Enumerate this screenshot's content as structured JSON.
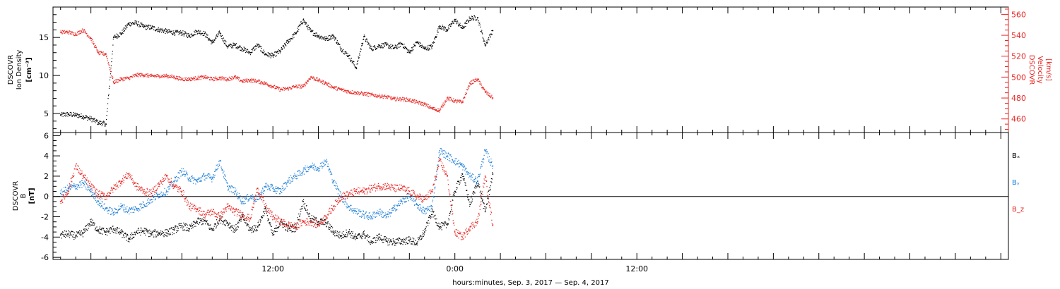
{
  "chart_data": [
    {
      "type": "scatter",
      "panel": "density_velocity",
      "ylabel": "DSCOVR Ion Density [cm^-3]",
      "ylabel_lines": [
        "DSCOVR",
        "Ion Density",
        "[cm⁻³]"
      ],
      "ylim": [
        2.5,
        19
      ],
      "yticks": [
        5,
        10,
        15
      ],
      "ylabel_right": "DSCOVR Velocity [km/s]",
      "ylabel_right_lines": [
        "DSCOVR",
        "Velocity",
        "[km/s]"
      ],
      "ylim_right": [
        447,
        567
      ],
      "yticks_right": [
        460,
        480,
        500,
        520,
        540,
        560
      ],
      "series": [
        {
          "name": "Ion Density",
          "color": "#000000",
          "axis": "left",
          "x": [
            -2.0,
            -1.5,
            -1.0,
            -0.5,
            0.0,
            0.5,
            1.0,
            1.5,
            2.0,
            2.5,
            3.0,
            3.5,
            4.0,
            4.5,
            5.0,
            5.5,
            6.0,
            6.5,
            7.0,
            7.5,
            8.0,
            8.5,
            9.0,
            9.5,
            10.0,
            10.5,
            11.0,
            11.5,
            12.0,
            12.5,
            13.0,
            13.5,
            14.0,
            14.5,
            15.0,
            15.5,
            16.0,
            16.5,
            17.0,
            17.5,
            18.0,
            18.5,
            19.0,
            19.5,
            20.0,
            20.5,
            21.0,
            21.5,
            22.0,
            22.5,
            23.0,
            23.5,
            24.0,
            24.5,
            25.0,
            25.5,
            26.0,
            26.5
          ],
          "y": [
            4.8,
            4.9,
            4.8,
            4.6,
            4.3,
            3.8,
            3.6,
            15.0,
            15.5,
            16.8,
            16.9,
            16.4,
            16.3,
            16.0,
            15.8,
            15.6,
            15.6,
            15.2,
            15.8,
            15.5,
            14.3,
            15.6,
            13.8,
            14.0,
            13.5,
            13.0,
            14.0,
            12.8,
            12.6,
            13.2,
            14.5,
            15.5,
            17.3,
            15.8,
            15.2,
            14.8,
            15.2,
            13.5,
            12.6,
            11.0,
            15.1,
            13.5,
            13.9,
            14.0,
            13.6,
            14.2,
            13.0,
            14.4,
            13.5,
            13.8,
            16.5,
            16.0,
            17.3,
            16.2,
            17.5,
            17.6,
            14.0,
            15.9
          ]
        },
        {
          "name": "Velocity",
          "color": "#e8231f",
          "axis": "right",
          "x": [
            -2.0,
            -1.5,
            -1.0,
            -0.5,
            0.0,
            0.5,
            1.0,
            1.5,
            2.0,
            2.5,
            3.0,
            3.5,
            4.0,
            4.5,
            5.0,
            5.5,
            6.0,
            6.5,
            7.0,
            7.5,
            8.0,
            8.5,
            9.0,
            9.5,
            10.0,
            10.5,
            11.0,
            11.5,
            12.0,
            12.5,
            13.0,
            13.5,
            14.0,
            14.5,
            15.0,
            15.5,
            16.0,
            16.5,
            17.0,
            17.5,
            18.0,
            18.5,
            19.0,
            19.5,
            20.0,
            20.5,
            21.0,
            21.5,
            22.0,
            22.5,
            23.0,
            23.5,
            24.0,
            24.5,
            25.0,
            25.5,
            26.0,
            26.5
          ],
          "y": [
            543,
            543,
            541,
            545,
            537,
            523,
            522,
            495,
            498,
            499,
            502,
            502,
            501,
            501,
            501,
            500,
            498,
            498,
            499,
            500,
            498,
            499,
            498,
            500,
            496,
            497,
            496,
            494,
            491,
            488,
            489,
            491,
            491,
            500,
            497,
            494,
            490,
            488,
            486,
            485,
            484,
            483,
            482,
            481,
            479,
            479,
            478,
            476,
            474,
            470,
            468,
            480,
            477,
            476,
            494,
            498,
            486,
            480
          ]
        }
      ],
      "grid": false
    },
    {
      "type": "scatter",
      "panel": "magnetic_field",
      "ylabel": "DSCOVR B [nT]",
      "ylabel_lines": [
        "DSCOVR",
        "B",
        "[nT]"
      ],
      "ylim": [
        -6.2,
        6.3
      ],
      "yticks": [
        -6,
        -4,
        -2,
        0,
        2,
        4,
        6
      ],
      "zero_line": true,
      "legend_placement": "right",
      "series": [
        {
          "name": "Bx",
          "legend_label": "Bₓ",
          "color": "#000000",
          "x": [
            -2.0,
            -1.5,
            -1.0,
            -0.5,
            0.0,
            0.5,
            1.0,
            1.5,
            2.0,
            2.5,
            3.0,
            3.5,
            4.0,
            4.5,
            5.0,
            5.5,
            6.0,
            6.5,
            7.0,
            7.5,
            8.0,
            8.5,
            9.0,
            9.5,
            10.0,
            10.5,
            11.0,
            11.5,
            12.0,
            12.5,
            13.0,
            13.5,
            14.0,
            14.5,
            15.0,
            15.5,
            16.0,
            16.5,
            17.0,
            17.5,
            18.0,
            18.5,
            19.0,
            19.5,
            20.0,
            20.5,
            21.0,
            21.5,
            22.0,
            22.5,
            23.0,
            23.5,
            24.0,
            24.5,
            25.0,
            25.5,
            26.0,
            26.5
          ],
          "y": [
            -3.8,
            -3.7,
            -3.9,
            -3.6,
            -2.5,
            -3.3,
            -3.5,
            -3.2,
            -3.6,
            -4.2,
            -3.5,
            -3.4,
            -3.7,
            -3.6,
            -3.6,
            -3.3,
            -2.9,
            -3.2,
            -2.5,
            -2.4,
            -3.3,
            -2.2,
            -2.6,
            -3.3,
            -2.0,
            -3.3,
            -3.0,
            -1.2,
            -3.8,
            -2.5,
            -3.2,
            -3.1,
            -0.5,
            -2.2,
            -2.5,
            -2.6,
            -3.5,
            -3.9,
            -3.5,
            -4.1,
            -3.7,
            -4.5,
            -4.0,
            -4.4,
            -4.5,
            -4.4,
            -4.3,
            -4.6,
            -3.5,
            -1.5,
            -3.0,
            -2.8,
            0.5,
            2.2,
            -0.8,
            1.5,
            -1.5,
            2.2
          ]
        },
        {
          "name": "By",
          "legend_label": "Bᵧ",
          "color": "#1e7fd8",
          "x": [
            -2.0,
            -1.5,
            -1.0,
            -0.5,
            0.0,
            0.5,
            1.0,
            1.5,
            2.0,
            2.5,
            3.0,
            3.5,
            4.0,
            4.5,
            5.0,
            5.5,
            6.0,
            6.5,
            7.0,
            7.5,
            8.0,
            8.5,
            9.0,
            9.5,
            10.0,
            10.5,
            11.0,
            11.5,
            12.0,
            12.5,
            13.0,
            13.5,
            14.0,
            14.5,
            15.0,
            15.5,
            16.0,
            16.5,
            17.0,
            17.5,
            18.0,
            18.5,
            19.0,
            19.5,
            20.0,
            20.5,
            21.0,
            21.5,
            22.0,
            22.5,
            23.0,
            23.5,
            24.0,
            24.5,
            25.0,
            25.5,
            26.0,
            26.5
          ],
          "y": [
            0.3,
            0.8,
            1.0,
            1.3,
            0.5,
            -0.5,
            -1.2,
            -1.6,
            -1.0,
            -1.4,
            -1.2,
            -0.8,
            -0.3,
            0.2,
            0.5,
            1.5,
            2.5,
            1.8,
            1.5,
            2.0,
            1.8,
            3.5,
            1.0,
            0.5,
            -0.5,
            0.0,
            -0.3,
            1.0,
            0.8,
            0.5,
            1.5,
            2.0,
            2.5,
            3.0,
            2.8,
            3.5,
            1.5,
            0.0,
            -1.0,
            -1.5,
            -1.8,
            -2.0,
            -1.5,
            -2.0,
            -1.2,
            -0.5,
            0.0,
            -0.8,
            -1.5,
            -1.0,
            4.5,
            4.0,
            3.5,
            3.0,
            2.0,
            1.5,
            4.5,
            3.0
          ]
        },
        {
          "name": "Bz",
          "legend_label": "B_z",
          "color": "#e8231f",
          "x": [
            -2.0,
            -1.5,
            -1.0,
            -0.5,
            0.0,
            0.5,
            1.0,
            1.5,
            2.0,
            2.5,
            3.0,
            3.5,
            4.0,
            4.5,
            5.0,
            5.5,
            6.0,
            6.5,
            7.0,
            7.5,
            8.0,
            8.5,
            9.0,
            9.5,
            10.0,
            10.5,
            11.0,
            11.5,
            12.0,
            12.5,
            13.0,
            13.5,
            14.0,
            14.5,
            15.0,
            15.5,
            16.0,
            16.5,
            17.0,
            17.5,
            18.0,
            18.5,
            19.0,
            19.5,
            20.0,
            20.5,
            21.0,
            21.5,
            22.0,
            22.5,
            23.0,
            23.5,
            24.0,
            24.5,
            25.0,
            25.5,
            26.0,
            26.5
          ],
          "y": [
            -0.5,
            0.5,
            3.0,
            2.0,
            1.0,
            0.2,
            0.0,
            0.8,
            1.5,
            2.2,
            1.0,
            0.5,
            0.3,
            1.2,
            2.0,
            1.0,
            0.5,
            -1.0,
            -1.2,
            -1.8,
            -1.5,
            -2.0,
            -1.0,
            -1.5,
            -1.8,
            -2.2,
            0.8,
            -1.0,
            -2.0,
            -2.5,
            -2.8,
            -3.0,
            -2.5,
            -2.5,
            -2.8,
            -2.0,
            -1.0,
            0.0,
            0.2,
            0.5,
            0.5,
            0.8,
            1.0,
            1.0,
            0.8,
            0.8,
            0.5,
            0.0,
            -0.3,
            0.5,
            3.5,
            2.0,
            -3.5,
            -4.0,
            -3.0,
            -2.5,
            2.0,
            -2.8
          ]
        }
      ],
      "grid": false
    }
  ],
  "xaxis": {
    "xlim": [
      -2.5,
      60.5
    ],
    "tick_labels": [
      "12:00",
      "0:00",
      "12:00"
    ],
    "xlabel": "hours:minutes, Sep.  3, 2017 — Sep.  4, 2017"
  }
}
